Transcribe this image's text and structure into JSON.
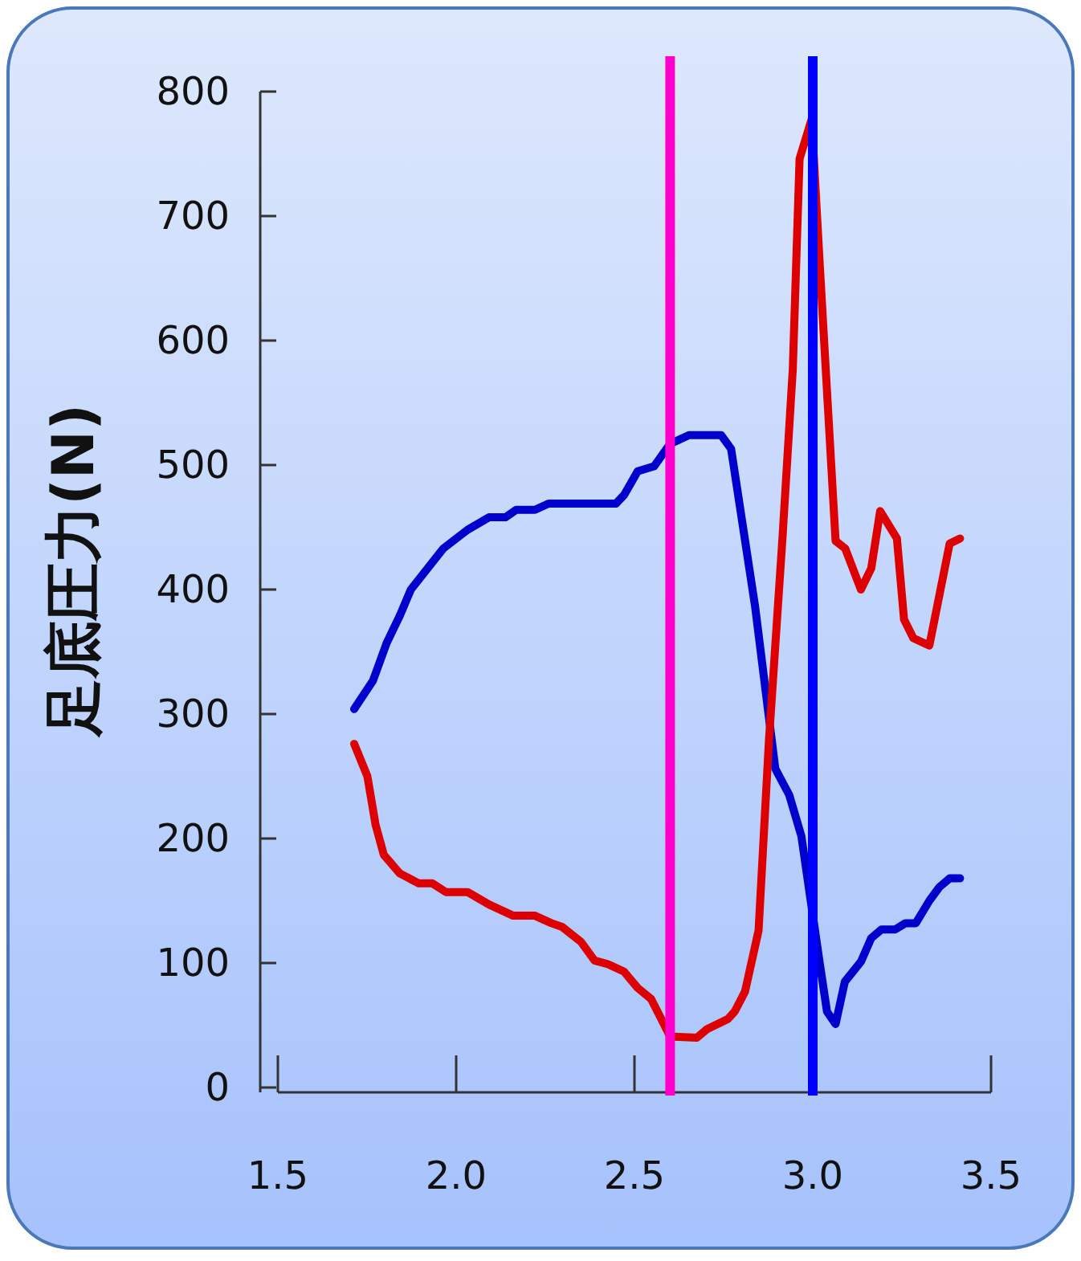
{
  "chart_data": {
    "type": "line",
    "ylabel": "足底圧力(N)",
    "xlim": [
      1.5,
      3.5
    ],
    "xticks": [
      1.5,
      {
        "value": 2,
        "label": "2.0"
      },
      2.5,
      {
        "value": 3,
        "label": "3.0"
      },
      3.5
    ],
    "ylim": [
      0,
      800
    ],
    "yticks": [
      0,
      100,
      200,
      300,
      400,
      500,
      600,
      700,
      800
    ],
    "grid": false,
    "marker": "none",
    "line_style": "solid",
    "series": [
      {
        "color": "#0000cc",
        "x": [
          1.714,
          1.767,
          1.805,
          1.842,
          1.873,
          1.964,
          2.032,
          2.092,
          2.138,
          2.168,
          2.221,
          2.259,
          2.448,
          2.471,
          2.509,
          2.555,
          2.6,
          2.653,
          2.743,
          2.771,
          2.838,
          2.895,
          2.934,
          2.968,
          3.02,
          3.04,
          3.064,
          3.09,
          3.135,
          3.164,
          3.193,
          3.231,
          3.26,
          3.289,
          3.327,
          3.355,
          3.384,
          3.413
        ],
        "values": [
          304,
          327,
          357,
          379,
          400,
          433,
          448,
          458,
          458,
          464,
          464,
          469,
          469,
          476,
          495,
          499,
          517,
          524,
          524,
          513,
          387,
          256,
          235,
          202,
          99,
          61,
          51,
          85,
          101,
          120,
          127,
          127,
          132,
          132,
          150,
          161,
          168,
          168
        ]
      },
      {
        "color": "#dd0000",
        "x": [
          1.714,
          1.751,
          1.774,
          1.797,
          1.842,
          1.895,
          1.933,
          1.971,
          2.032,
          2.092,
          2.16,
          2.221,
          2.267,
          2.297,
          2.35,
          2.388,
          2.426,
          2.471,
          2.509,
          2.547,
          2.6,
          2.675,
          2.704,
          2.762,
          2.781,
          2.81,
          2.848,
          2.877,
          2.915,
          2.944,
          2.963,
          2.997,
          3.02,
          3.064,
          3.091,
          3.135,
          3.164,
          3.189,
          3.236,
          3.256,
          3.282,
          3.327,
          3.384,
          3.413
        ],
        "values": [
          276,
          250,
          211,
          187,
          172,
          164,
          164,
          157,
          157,
          147,
          138,
          138,
          132,
          129,
          117,
          102,
          99,
          93,
          80,
          71,
          41,
          40,
          47,
          55,
          61,
          77,
          126,
          278,
          441,
          577,
          746,
          778,
          659,
          439,
          433,
          400,
          417,
          463,
          441,
          376,
          361,
          355,
          437,
          441
        ]
      }
    ],
    "ref_lines": [
      {
        "axis": "x",
        "value": 2.6,
        "color": "#ff00cc"
      },
      {
        "axis": "x",
        "value": 3.0,
        "color": "#0000ff"
      }
    ]
  }
}
